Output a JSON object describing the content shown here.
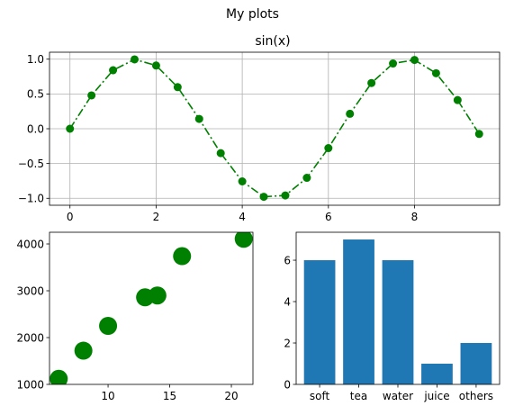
{
  "figure": {
    "suptitle": "My plots"
  },
  "chart_data": [
    {
      "id": "sin-line",
      "type": "line",
      "title": "sin(x)",
      "xlabel": "",
      "ylabel": "",
      "grid": true,
      "xlim": [
        -0.475,
        9.975
      ],
      "ylim": [
        -1.1,
        1.1
      ],
      "xticks": [
        0,
        2,
        4,
        6,
        8
      ],
      "yticks": [
        -1.0,
        -0.5,
        0.0,
        0.5,
        1.0
      ],
      "ytick_labels": [
        "−1.0",
        "−0.5",
        "0.0",
        "0.5",
        "1.0"
      ],
      "xtick_labels": [
        "0",
        "2",
        "4",
        "6",
        "8"
      ],
      "x": [
        0,
        0.5,
        1,
        1.5,
        2,
        2.5,
        3,
        3.5,
        4,
        4.5,
        5,
        5.5,
        6,
        6.5,
        7,
        7.5,
        8,
        8.5,
        9,
        9.5
      ],
      "y": [
        0.0,
        0.479,
        0.841,
        0.997,
        0.909,
        0.598,
        0.141,
        -0.351,
        -0.757,
        -0.978,
        -0.959,
        -0.706,
        -0.279,
        0.215,
        0.657,
        0.938,
        0.989,
        0.798,
        0.412,
        -0.075
      ],
      "color": "#008000",
      "linestyle": "dash-dot",
      "marker": "circle"
    },
    {
      "id": "scatter",
      "type": "scatter",
      "title": "",
      "xlabel": "",
      "ylabel": "",
      "grid": false,
      "xlim": [
        5.25,
        21.75
      ],
      "ylim": [
        1000,
        4250
      ],
      "xticks": [
        10,
        15,
        20
      ],
      "xtick_labels": [
        "10",
        "15",
        "20"
      ],
      "yticks": [
        1000,
        2000,
        3000,
        4000
      ],
      "ytick_labels": [
        "1000",
        "2000",
        "3000",
        "4000"
      ],
      "x": [
        6,
        8,
        10,
        13,
        14,
        16,
        21
      ],
      "y": [
        1120,
        1720,
        2250,
        2860,
        2900,
        3740,
        4110
      ],
      "color": "#008000",
      "marker": "circle"
    },
    {
      "id": "bar",
      "type": "bar",
      "title": "",
      "xlabel": "",
      "ylabel": "",
      "grid": false,
      "categories": [
        "soft",
        "tea",
        "water",
        "juice",
        "others"
      ],
      "values": [
        6,
        7,
        6,
        1,
        2
      ],
      "ylim": [
        0,
        7.35
      ],
      "yticks": [
        0,
        2,
        4,
        6
      ],
      "ytick_labels": [
        "0",
        "2",
        "4",
        "6"
      ],
      "color": "#1f77b4"
    }
  ]
}
